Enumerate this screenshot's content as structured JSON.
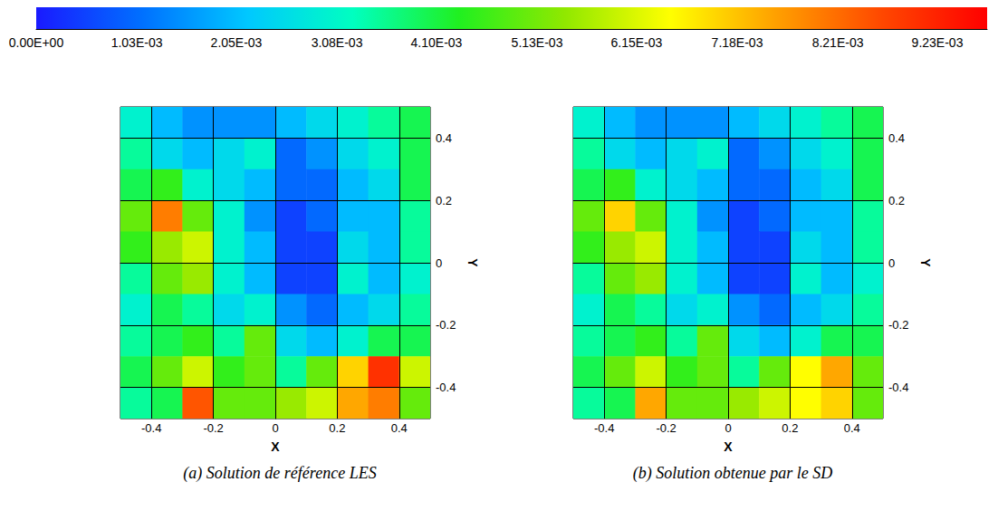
{
  "chart_data": [
    {
      "type": "heatmap",
      "title": "(a) Solution de référence LES",
      "x_label": "X",
      "y_label": "Y",
      "xlim": [
        -0.5,
        0.5
      ],
      "ylim": [
        -0.5,
        0.5
      ],
      "xticks": [
        -0.4,
        -0.2,
        0,
        0.2,
        0.4
      ],
      "yticks": [
        -0.4,
        -0.2,
        0,
        0.2,
        0.4
      ],
      "grid": true,
      "x": [
        -0.45,
        -0.35,
        -0.25,
        -0.15,
        -0.05,
        0.05,
        0.15,
        0.25,
        0.35,
        0.45
      ],
      "y": [
        0.45,
        0.35,
        0.25,
        0.15,
        0.05,
        -0.05,
        -0.15,
        -0.25,
        -0.35,
        -0.45
      ],
      "cells": [
        [
          0.003,
          0.002,
          0.0015,
          0.0015,
          0.0015,
          0.002,
          0.0025,
          0.003,
          0.0035,
          0.004
        ],
        [
          0.0035,
          0.0025,
          0.002,
          0.0025,
          0.003,
          0.001,
          0.0015,
          0.0025,
          0.003,
          0.004
        ],
        [
          0.004,
          0.0045,
          0.003,
          0.0025,
          0.002,
          0.001,
          0.001,
          0.002,
          0.0025,
          0.004
        ],
        [
          0.005,
          0.008,
          0.005,
          0.003,
          0.0015,
          0.0005,
          0.001,
          0.002,
          0.002,
          0.0035
        ],
        [
          0.0045,
          0.0055,
          0.006,
          0.003,
          0.002,
          0.0005,
          0.0005,
          0.0025,
          0.002,
          0.0035
        ],
        [
          0.0035,
          0.005,
          0.0055,
          0.003,
          0.002,
          0.0005,
          0.0005,
          0.003,
          0.002,
          0.003
        ],
        [
          0.003,
          0.004,
          0.0035,
          0.0025,
          0.003,
          0.0015,
          0.001,
          0.002,
          0.0025,
          0.0035
        ],
        [
          0.0035,
          0.004,
          0.0045,
          0.0035,
          0.005,
          0.0025,
          0.002,
          0.003,
          0.004,
          0.004
        ],
        [
          0.004,
          0.005,
          0.006,
          0.0045,
          0.005,
          0.0035,
          0.005,
          0.007,
          0.009,
          0.006
        ],
        [
          0.0035,
          0.004,
          0.0085,
          0.005,
          0.005,
          0.0055,
          0.006,
          0.0075,
          0.008,
          0.005
        ]
      ],
      "colorbar_range": [
        0,
        0.00974
      ],
      "colorbar_ticks": [
        {
          "value": 0,
          "label": "0.00E+00"
        },
        {
          "value": 0.00103,
          "label": "1.03E-03"
        },
        {
          "value": 0.00205,
          "label": "2.05E-03"
        },
        {
          "value": 0.00308,
          "label": "3.08E-03"
        },
        {
          "value": 0.0041,
          "label": "4.10E-03"
        },
        {
          "value": 0.00513,
          "label": "5.13E-03"
        },
        {
          "value": 0.00615,
          "label": "6.15E-03"
        },
        {
          "value": 0.00718,
          "label": "7.18E-03"
        },
        {
          "value": 0.00821,
          "label": "8.21E-03"
        },
        {
          "value": 0.00923,
          "label": "9.23E-03"
        }
      ]
    },
    {
      "type": "heatmap",
      "title": "(b) Solution obtenue par le SD",
      "x_label": "X",
      "y_label": "Y",
      "xlim": [
        -0.5,
        0.5
      ],
      "ylim": [
        -0.5,
        0.5
      ],
      "xticks": [
        -0.4,
        -0.2,
        0,
        0.2,
        0.4
      ],
      "yticks": [
        -0.4,
        -0.2,
        0,
        0.2,
        0.4
      ],
      "grid": true,
      "x": [
        -0.45,
        -0.35,
        -0.25,
        -0.15,
        -0.05,
        0.05,
        0.15,
        0.25,
        0.35,
        0.45
      ],
      "y": [
        0.45,
        0.35,
        0.25,
        0.15,
        0.05,
        -0.05,
        -0.15,
        -0.25,
        -0.35,
        -0.45
      ],
      "cells": [
        [
          0.003,
          0.002,
          0.0015,
          0.0015,
          0.0015,
          0.002,
          0.0025,
          0.003,
          0.0035,
          0.004
        ],
        [
          0.0035,
          0.0025,
          0.002,
          0.0025,
          0.003,
          0.001,
          0.0015,
          0.0025,
          0.003,
          0.004
        ],
        [
          0.004,
          0.0045,
          0.003,
          0.0025,
          0.002,
          0.001,
          0.001,
          0.002,
          0.0025,
          0.004
        ],
        [
          0.005,
          0.007,
          0.005,
          0.003,
          0.0015,
          0.0005,
          0.001,
          0.002,
          0.002,
          0.0035
        ],
        [
          0.0045,
          0.0055,
          0.006,
          0.003,
          0.002,
          0.0005,
          0.0005,
          0.0025,
          0.002,
          0.0035
        ],
        [
          0.0035,
          0.005,
          0.0055,
          0.003,
          0.002,
          0.0005,
          0.0005,
          0.003,
          0.002,
          0.003
        ],
        [
          0.003,
          0.004,
          0.0035,
          0.0025,
          0.003,
          0.0015,
          0.001,
          0.002,
          0.0025,
          0.0035
        ],
        [
          0.0035,
          0.004,
          0.0045,
          0.0035,
          0.005,
          0.0025,
          0.002,
          0.003,
          0.004,
          0.004
        ],
        [
          0.004,
          0.005,
          0.006,
          0.0045,
          0.005,
          0.0035,
          0.005,
          0.0065,
          0.0075,
          0.005
        ],
        [
          0.0035,
          0.004,
          0.0075,
          0.005,
          0.005,
          0.0055,
          0.006,
          0.0065,
          0.007,
          0.005
        ]
      ],
      "colorbar_range": [
        0,
        0.00974
      ],
      "colorbar_ticks": [
        {
          "value": 0,
          "label": "0.00E+00"
        },
        {
          "value": 0.00103,
          "label": "1.03E-03"
        },
        {
          "value": 0.00205,
          "label": "2.05E-03"
        },
        {
          "value": 0.00308,
          "label": "3.08E-03"
        },
        {
          "value": 0.0041,
          "label": "4.10E-03"
        },
        {
          "value": 0.00513,
          "label": "5.13E-03"
        },
        {
          "value": 0.00615,
          "label": "6.15E-03"
        },
        {
          "value": 0.00718,
          "label": "7.18E-03"
        },
        {
          "value": 0.00821,
          "label": "8.21E-03"
        },
        {
          "value": 0.00923,
          "label": "9.23E-03"
        }
      ]
    }
  ]
}
